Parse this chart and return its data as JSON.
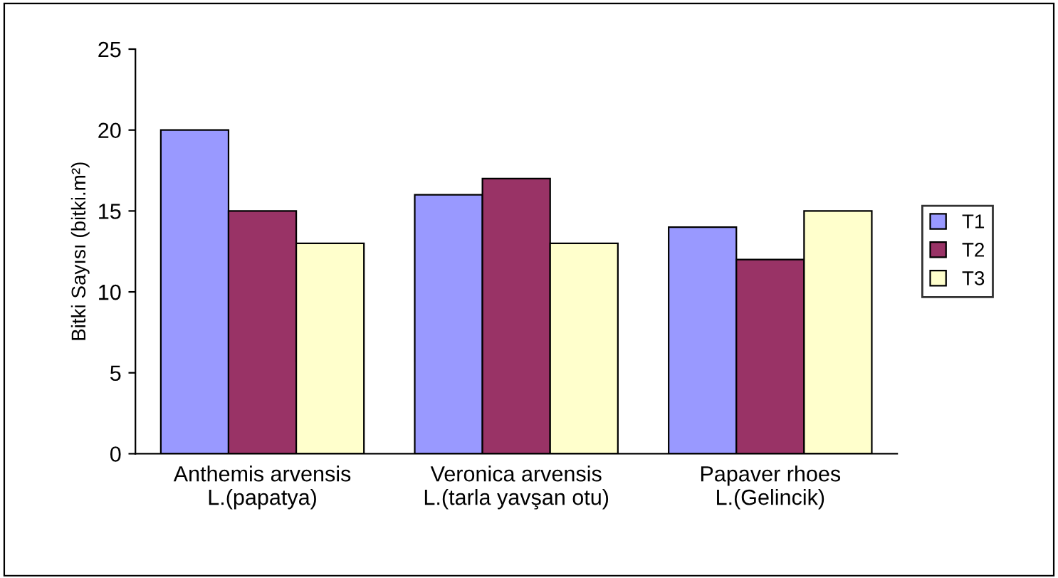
{
  "chart_data": {
    "type": "bar",
    "ylabel": "Bitki Sayısı (bitki.m²)",
    "categories": [
      "Anthemis arvensis\nL.(papatya)",
      "Veronica arvensis\nL.(tarla yavşan otu)",
      "Papaver rhoes\nL.(Gelincik)"
    ],
    "series": [
      {
        "name": "T1",
        "color": "#9999ff",
        "values": [
          20,
          16,
          14
        ]
      },
      {
        "name": "T2",
        "color": "#993366",
        "values": [
          15,
          17,
          12
        ]
      },
      {
        "name": "T3",
        "color": "#ffffcc",
        "values": [
          13,
          13,
          15
        ]
      }
    ],
    "ylim": [
      0,
      25
    ],
    "yticks": [
      0,
      5,
      10,
      15,
      20,
      25
    ],
    "grid": false,
    "legend": "right"
  }
}
